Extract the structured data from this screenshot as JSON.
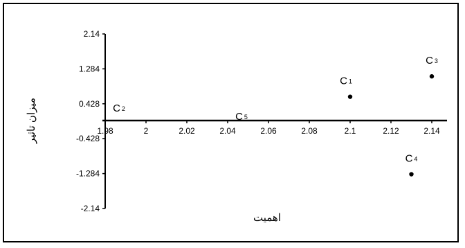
{
  "chart_data": {
    "type": "scatter",
    "title": "",
    "xlabel": "اهمیت",
    "ylabel": "میزان تاثیر",
    "xlim": [
      1.98,
      2.14
    ],
    "ylim": [
      -2.14,
      2.14
    ],
    "x_ticks": [
      "1.98",
      "2",
      "2.02",
      "2.04",
      "2.06",
      "2.08",
      "2.1",
      "2.12",
      "2.14"
    ],
    "y_ticks": [
      "2.14",
      "1.284",
      "0.428",
      "-0.428",
      "-1.284",
      "-2.14"
    ],
    "grid": false,
    "legend": "none",
    "points": [
      {
        "label": "C",
        "sub": "1",
        "x": 2.1,
        "y": 0.6
      },
      {
        "label": "C",
        "sub": "2",
        "x": 1.98,
        "y": 0.0
      },
      {
        "label": "C",
        "sub": "3",
        "x": 2.14,
        "y": 1.1
      },
      {
        "label": "C",
        "sub": "4",
        "x": 2.13,
        "y": -1.3
      },
      {
        "label": "C",
        "sub": "5",
        "x": 2.04,
        "y": 0.0
      }
    ],
    "colors": {
      "marker": "#000000",
      "axis": "#000000",
      "background": "#ffffff"
    }
  }
}
